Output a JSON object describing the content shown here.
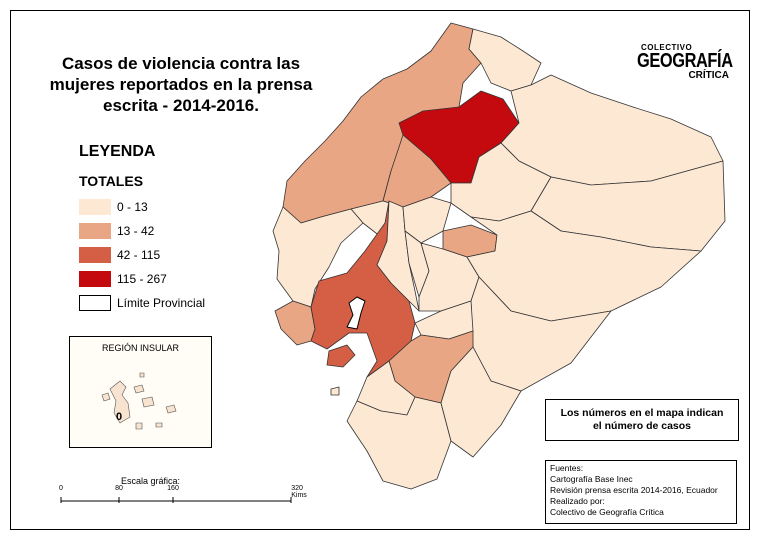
{
  "title": "Casos de violencia contra las mujeres reportados en la prensa escrita - 2014-2016.",
  "title_lines": [
    "Casos de violencia contra las",
    "mujeres reportados en la prensa",
    "escrita - 2014-2016."
  ],
  "logo": {
    "line1": "COLECTIVO",
    "line2": "GEOGRAFÍA",
    "line3": "CRÍTICA"
  },
  "legend": {
    "title": "LEYENDA",
    "subtitle": "TOTALES",
    "items": [
      {
        "label": "0 - 13",
        "color": "#fde8d4"
      },
      {
        "label": "13 - 42",
        "color": "#e8a684"
      },
      {
        "label": "42 - 115",
        "color": "#d55f45"
      },
      {
        "label": "115 - 267",
        "color": "#c50a0f"
      }
    ],
    "boundary_label": "Límite Provincial"
  },
  "insular": {
    "label": "REGIÓN INSULAR",
    "value": "0"
  },
  "note": {
    "line1": "Los números en el mapa indican",
    "line2": "el número de casos"
  },
  "sources": {
    "line1": "Fuentes:",
    "line2": "Cartografía Base Inec",
    "line3": "Revisión prensa escrita 2014-2016, Ecuador",
    "line4": "Realizado por:",
    "line5": "Colectivo de Geografía Crítica"
  },
  "scale": {
    "title": "Escala gráfica:",
    "ticks": [
      "0",
      "80",
      "160",
      "320 Kims"
    ]
  },
  "colors": {
    "ocean": "#ffffff",
    "boundary": "#333333"
  }
}
